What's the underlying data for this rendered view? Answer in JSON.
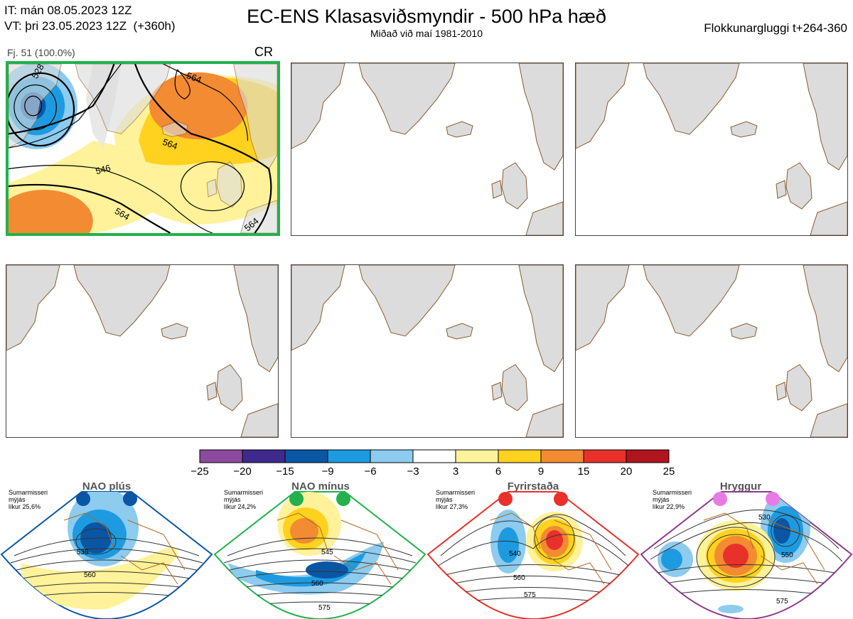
{
  "header": {
    "init_time": "IT: mán 08.05.2023 12Z",
    "valid_time": "VT: þri 23.05.2023 12Z  (+360h)",
    "title": "EC-ENS Klasasviðsmyndir - 500 hPa hæð",
    "subtitle": "Miðað við maí 1981-2010",
    "window": "Flokkunargluggi t+264-360"
  },
  "cluster": {
    "label": "Fj. 51 (100.0%)",
    "code": "CR",
    "contour_labels": [
      "528",
      "546",
      "564",
      "564",
      "564",
      "564"
    ]
  },
  "colors": {
    "land": "#dcdcdc",
    "coast": "#8b5a2b",
    "active_border": "#22b14c",
    "contour": "#000000"
  },
  "colorbar": {
    "ticks": [
      "−25",
      "−20",
      "−15",
      "−9",
      "−6",
      "−3",
      "3",
      "6",
      "9",
      "15",
      "20",
      "25"
    ],
    "colors": [
      "#8c4a9e",
      "#3e2a8c",
      "#0a56a5",
      "#1e9be0",
      "#8dcbef",
      "#ffffff",
      "#fff29a",
      "#ffd21f",
      "#f38b32",
      "#e8312b",
      "#b0141c"
    ]
  },
  "regimes": [
    {
      "name": "NAO plús",
      "season": "Sumarmisseri",
      "smoothing": "mýjás",
      "likelihood": "líkur 25,6%",
      "dot_color": "#0a56a5",
      "border": "#0a56a5",
      "labels": [
        "535",
        "560"
      ]
    },
    {
      "name": "NAO mínus",
      "season": "Sumarmisseri",
      "smoothing": "mýjás",
      "likelihood": "líkur 24,2%",
      "dot_color": "#22b14c",
      "border": "#22b14c",
      "labels": [
        "545",
        "560",
        "575"
      ]
    },
    {
      "name": "Fyrirstaða",
      "season": "Sumarmisseri",
      "smoothing": "mýjás",
      "likelihood": "líkur 27,3%",
      "dot_color": "#e8312b",
      "border": "#e8312b",
      "labels": [
        "540",
        "560",
        "575"
      ]
    },
    {
      "name": "Hryggur",
      "season": "Sumarmisseri",
      "smoothing": "mýjás",
      "likelihood": "líkur 22,9%",
      "dot_color": "#e67be6",
      "border": "#8b3a8b",
      "labels": [
        "530",
        "550",
        "575"
      ]
    }
  ]
}
